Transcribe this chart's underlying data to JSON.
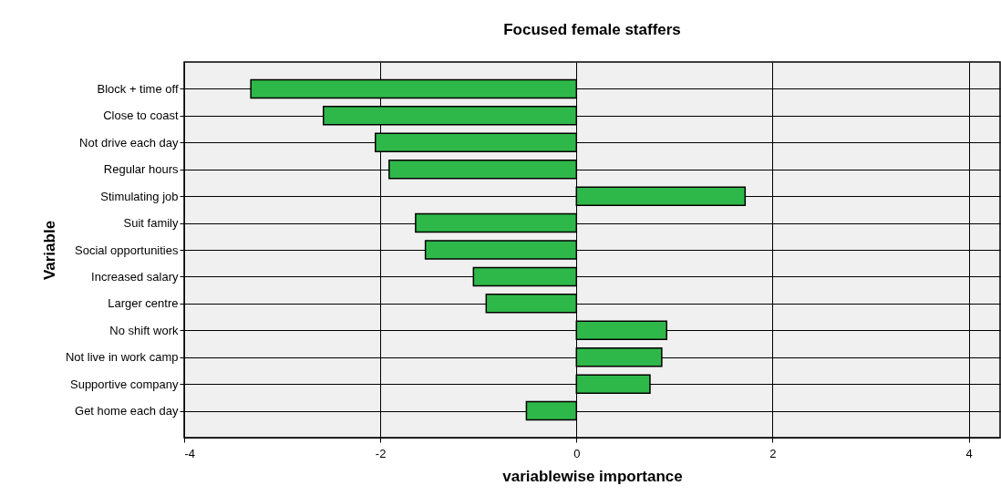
{
  "chart_data": {
    "type": "bar",
    "orientation": "horizontal",
    "title": "Focused female staffers",
    "xlabel": "variablewise importance",
    "ylabel": "Variable",
    "categories": [
      "Block + time off",
      "Close to coast",
      "Not drive each day",
      "Regular hours",
      "Stimulating job",
      "Suit family",
      "Social opportunities",
      "Increased salary",
      "Larger centre",
      "No shift work",
      "Not live in work camp",
      "Supportive company",
      "Get home each day"
    ],
    "values": [
      -3.32,
      -2.58,
      -2.05,
      -1.91,
      1.72,
      -1.64,
      -1.54,
      -1.05,
      -0.92,
      0.92,
      0.87,
      0.75,
      -0.51
    ],
    "color": "#2fb84a",
    "xlim": [
      -4,
      4.32
    ],
    "xticks": [
      -4,
      -2,
      0,
      2,
      4
    ],
    "grid": true
  }
}
